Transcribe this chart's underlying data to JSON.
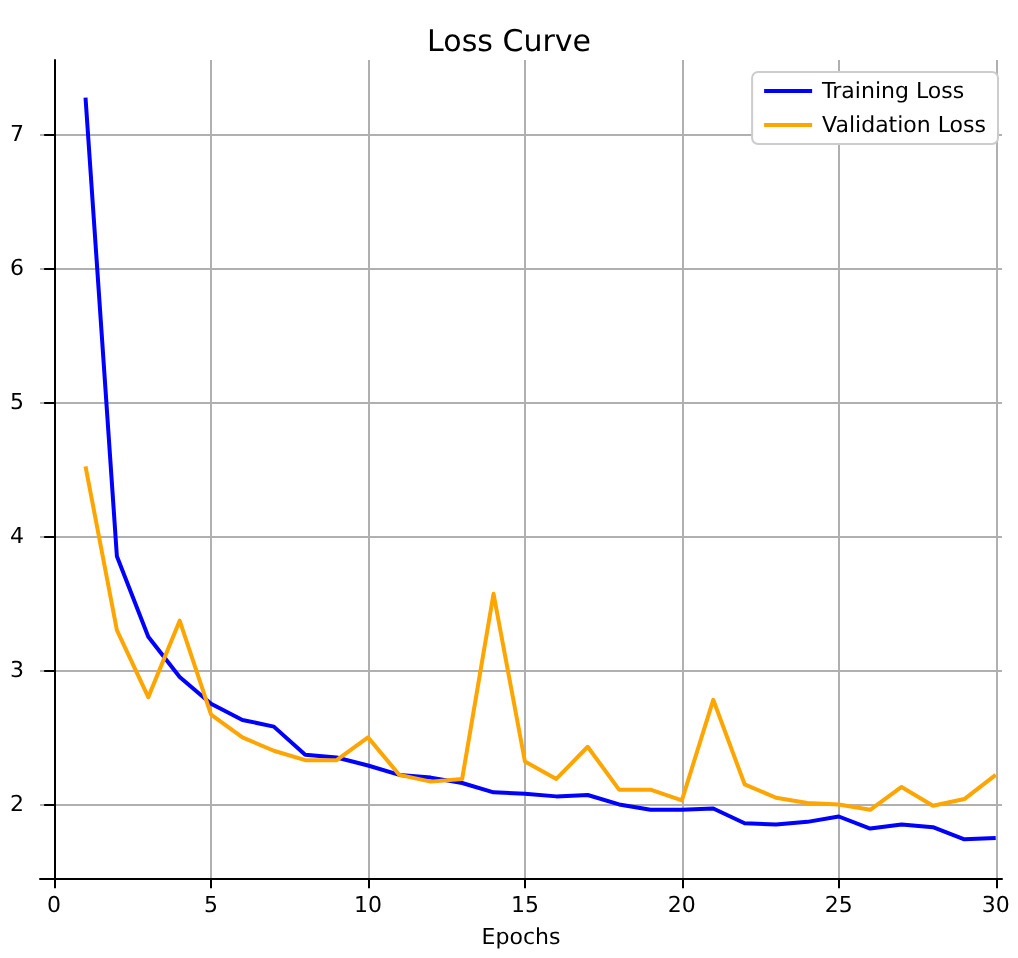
{
  "chart_data": {
    "type": "line",
    "title": "Loss Curve",
    "xlabel": "Epochs",
    "x": [
      1,
      2,
      3,
      4,
      5,
      6,
      7,
      8,
      9,
      10,
      11,
      12,
      13,
      14,
      15,
      16,
      17,
      18,
      19,
      20,
      21,
      22,
      23,
      24,
      25,
      26,
      27,
      28,
      29,
      30
    ],
    "series": [
      {
        "name": "Training Loss",
        "color": "#0000ff",
        "values": [
          7.27,
          3.85,
          3.25,
          2.95,
          2.75,
          2.63,
          2.58,
          2.37,
          2.35,
          2.29,
          2.22,
          2.2,
          2.16,
          2.09,
          2.08,
          2.06,
          2.07,
          2.0,
          1.96,
          1.96,
          1.97,
          1.86,
          1.85,
          1.87,
          1.91,
          1.82,
          1.85,
          1.83,
          1.74,
          1.75
        ]
      },
      {
        "name": "Validation Loss",
        "color": "#ffa500",
        "values": [
          4.52,
          3.3,
          2.8,
          3.37,
          2.67,
          2.5,
          2.4,
          2.33,
          2.33,
          2.5,
          2.22,
          2.17,
          2.19,
          3.57,
          2.32,
          2.19,
          2.43,
          2.11,
          2.11,
          2.03,
          2.78,
          2.15,
          2.05,
          2.01,
          2.0,
          1.96,
          2.13,
          1.99,
          2.04,
          2.22
        ]
      }
    ],
    "xlim": [
      -0.45,
      30.2
    ],
    "xticks": [
      0,
      5,
      10,
      15,
      20,
      25,
      30
    ],
    "ylim": [
      1.45,
      7.55
    ],
    "yticks": [
      2,
      3,
      4,
      5,
      6,
      7
    ],
    "grid": true,
    "legend": "top right",
    "marker": "none",
    "line_style": "solid"
  }
}
